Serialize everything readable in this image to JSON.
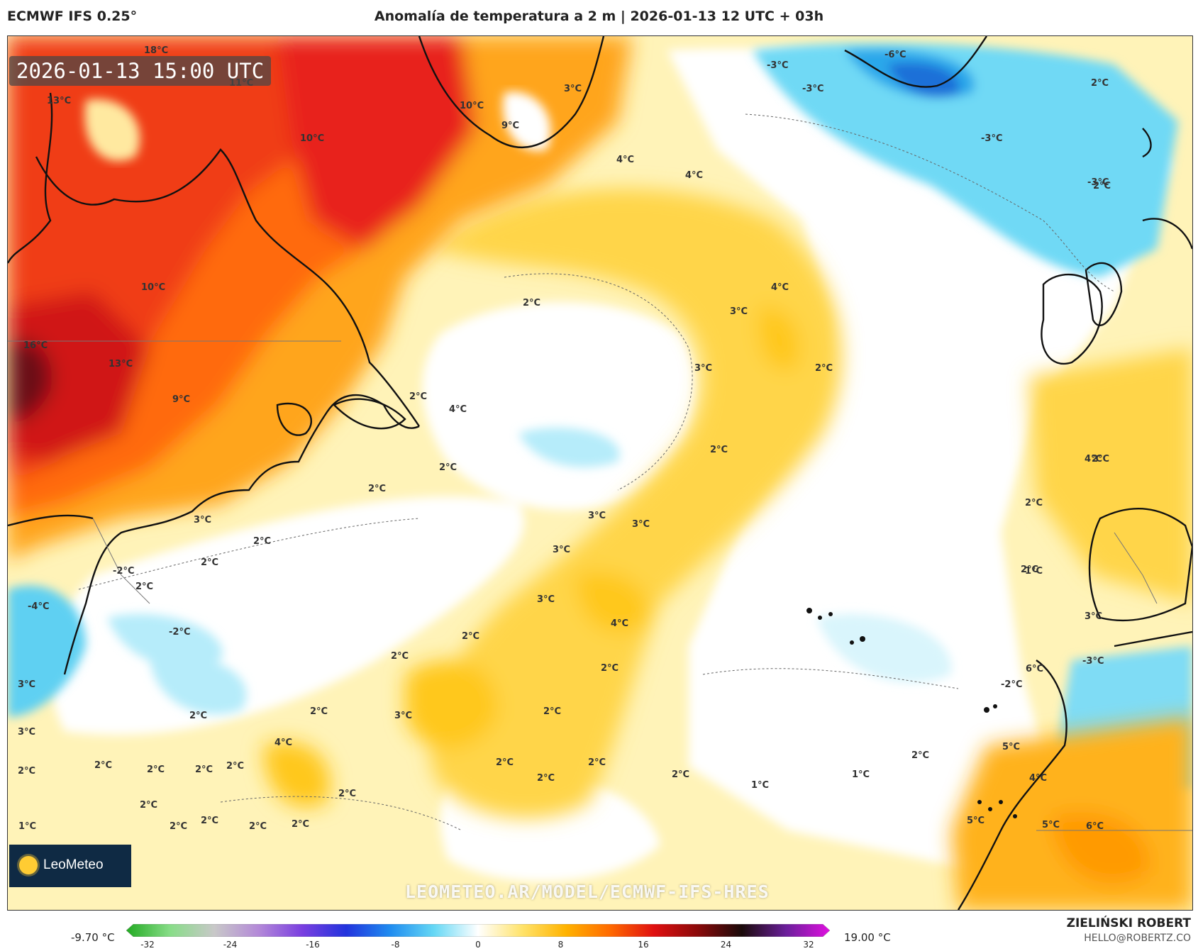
{
  "header": {
    "model": "ECMWF IFS 0.25°",
    "title": "Anomalía de temperatura a 2 m | 2026-01-13 12 UTC + 03h"
  },
  "map": {
    "timestamp": "2026-01-13 15:00 UTC",
    "watermark": "LEOMETEO.AR/MODEL/ECMWF-IFS-HRES",
    "logo_text": "LeoMeteo",
    "labels": [
      {
        "text": "18°C"
      },
      {
        "text": "13°C"
      },
      {
        "text": "11°C"
      },
      {
        "text": "10°C"
      },
      {
        "text": "10°C"
      },
      {
        "text": "10°C"
      },
      {
        "text": "16°C"
      },
      {
        "text": "13°C"
      },
      {
        "text": "9°C"
      },
      {
        "text": "9°C"
      },
      {
        "text": "3°C"
      },
      {
        "text": "4°C"
      },
      {
        "text": "4°C"
      },
      {
        "text": "-3°C"
      },
      {
        "text": "-3°C"
      },
      {
        "text": "-6°C"
      },
      {
        "text": "-3°C"
      },
      {
        "text": "2°C"
      },
      {
        "text": "2°C"
      },
      {
        "text": "4°C"
      },
      {
        "text": "3°C"
      },
      {
        "text": "3°C"
      },
      {
        "text": "2°C"
      },
      {
        "text": "2°C"
      },
      {
        "text": "2°C"
      },
      {
        "text": "4°C"
      },
      {
        "text": "2°C"
      },
      {
        "text": "2°C"
      },
      {
        "text": "2°C"
      },
      {
        "text": "3°C"
      },
      {
        "text": "3°C"
      },
      {
        "text": "3°C"
      },
      {
        "text": "3°C"
      },
      {
        "text": "2°C"
      },
      {
        "text": "3°C"
      },
      {
        "text": "4°C"
      },
      {
        "text": "-2°C"
      },
      {
        "text": "2°C"
      },
      {
        "text": "-4°C"
      },
      {
        "text": "-2°C"
      },
      {
        "text": "3°C"
      },
      {
        "text": "3°C"
      },
      {
        "text": "2°C"
      },
      {
        "text": "2°C"
      },
      {
        "text": "3°C"
      },
      {
        "text": "2°C"
      },
      {
        "text": "2°C"
      },
      {
        "text": "4°C"
      },
      {
        "text": "2°C"
      },
      {
        "text": "2°C"
      },
      {
        "text": "2°C"
      },
      {
        "text": "2°C"
      },
      {
        "text": "2°C"
      },
      {
        "text": "2°C"
      },
      {
        "text": "2°C"
      },
      {
        "text": "2°C"
      },
      {
        "text": "1°C"
      },
      {
        "text": "1°C"
      },
      {
        "text": "2°C"
      },
      {
        "text": "2°C"
      },
      {
        "text": "2°C"
      },
      {
        "text": "4°C"
      },
      {
        "text": "2°C"
      },
      {
        "text": "1°C"
      },
      {
        "text": "3°C"
      },
      {
        "text": "6°C"
      },
      {
        "text": "-3°C"
      },
      {
        "text": "-2°C"
      },
      {
        "text": "5°C"
      },
      {
        "text": "4°C"
      },
      {
        "text": "5°C"
      },
      {
        "text": "5°C"
      },
      {
        "text": "6°C"
      },
      {
        "text": "2°C"
      },
      {
        "text": "2°C"
      },
      {
        "text": "2°C"
      },
      {
        "text": "2°C"
      },
      {
        "text": "2°C"
      },
      {
        "text": "2°C"
      },
      {
        "text": "2°C"
      },
      {
        "text": "2°C"
      },
      {
        "text": "1°C"
      },
      {
        "text": "2°C"
      },
      {
        "text": "-3°C"
      },
      {
        "text": "2°C"
      }
    ]
  },
  "legend": {
    "min_label": "-9.70 °C",
    "max_label": "19.00 °C",
    "ticks": [
      "-32",
      "-24",
      "-16",
      "-8",
      "0",
      "8",
      "16",
      "24",
      "32"
    ],
    "colors": [
      "#22aa22",
      "#88dd88",
      "#c8c8c8",
      "#b48ad8",
      "#7a3fe0",
      "#2233dd",
      "#1f8cf0",
      "#66d8f5",
      "#ffffff",
      "#ffe36b",
      "#ffb300",
      "#ff6a00",
      "#e01010",
      "#8a0a0a",
      "#1a0a0a",
      "#6a1f9a",
      "#e010e0"
    ]
  },
  "author": {
    "name": "ZIELIŃSKI ROBERT",
    "email": "HELLO@ROBERTZ.CO"
  }
}
